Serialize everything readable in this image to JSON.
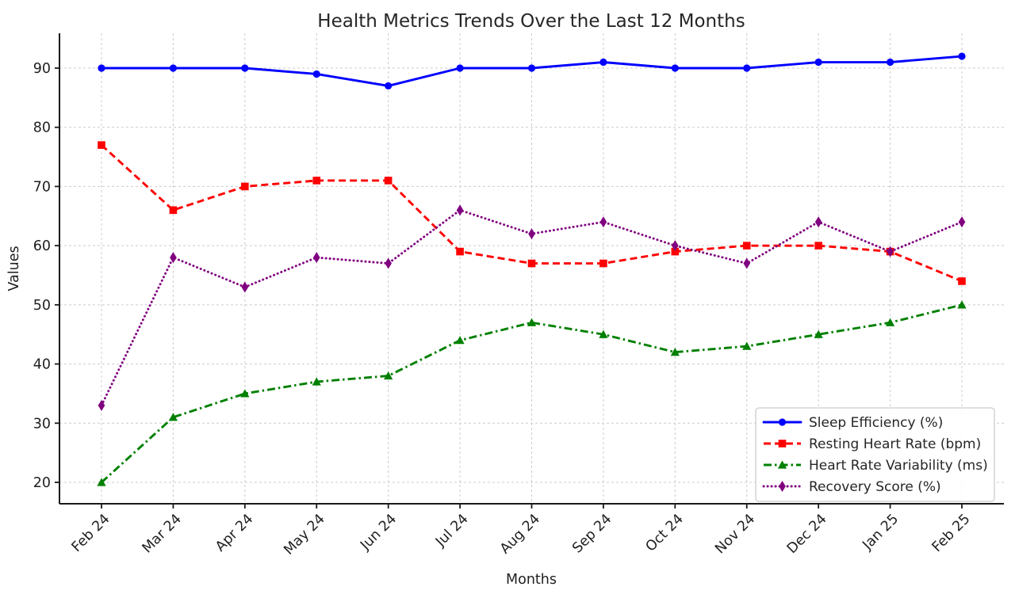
{
  "chart_data": {
    "type": "line",
    "title": "Health Metrics Trends Over the Last 12 Months",
    "xlabel": "Months",
    "ylabel": "Values",
    "categories": [
      "Feb 24",
      "Mar 24",
      "Apr 24",
      "May 24",
      "Jun 24",
      "Jul 24",
      "Aug 24",
      "Sep 24",
      "Oct 24",
      "Nov 24",
      "Dec 24",
      "Jan 25",
      "Feb 25"
    ],
    "yticks": [
      20,
      30,
      40,
      50,
      60,
      70,
      80,
      90
    ],
    "ylim": [
      16.4,
      95.6
    ],
    "grid": true,
    "grid_style": "dashed",
    "legend_position": "lower right",
    "series": [
      {
        "name": "Sleep Efficiency (%)",
        "color": "#0000ff",
        "linestyle": "solid",
        "marker": "circle",
        "values": [
          90,
          90,
          90,
          89,
          87,
          90,
          90,
          91,
          90,
          90,
          91,
          91,
          92
        ]
      },
      {
        "name": "Resting Heart Rate (bpm)",
        "color": "#ff0000",
        "linestyle": "dashed",
        "marker": "square",
        "values": [
          77,
          66,
          70,
          71,
          71,
          59,
          57,
          57,
          59,
          60,
          60,
          59,
          54
        ]
      },
      {
        "name": "Heart Rate Variability (ms)",
        "color": "#008000",
        "linestyle": "dashdot",
        "marker": "triangle",
        "values": [
          20,
          31,
          35,
          37,
          38,
          44,
          47,
          45,
          42,
          43,
          45,
          47,
          50
        ]
      },
      {
        "name": "Recovery Score (%)",
        "color": "#800080",
        "linestyle": "dotted",
        "marker": "diamond",
        "values": [
          33,
          58,
          53,
          58,
          57,
          66,
          62,
          64,
          60,
          57,
          64,
          59,
          64
        ]
      }
    ],
    "colors": {
      "grid": "#cccccc",
      "spine": "#1a1a1a",
      "tick_label": "#1f1f1f",
      "title": "#262626",
      "legend_border": "#cccccc",
      "legend_text": "#262626"
    }
  }
}
